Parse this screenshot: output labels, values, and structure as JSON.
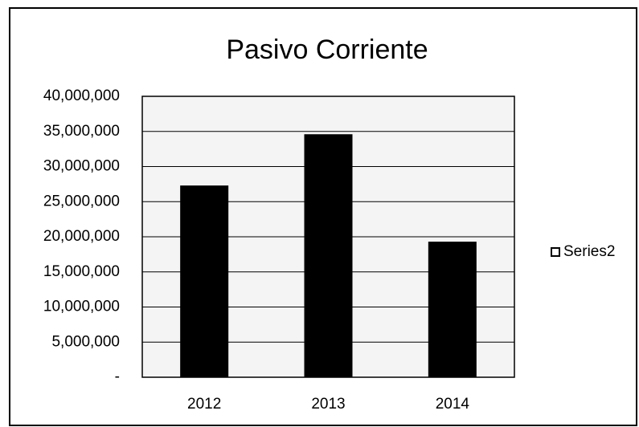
{
  "chart_data": {
    "type": "bar",
    "title": "Pasivo Corriente",
    "categories": [
      "2012",
      "2013",
      "2014"
    ],
    "series": [
      {
        "name": "Series2",
        "color": "#000000",
        "values": [
          27300000,
          34600000,
          19300000
        ]
      }
    ],
    "ylim": [
      0,
      40000000
    ],
    "yticks": [
      {
        "value": 0,
        "label": "-"
      },
      {
        "value": 5000000,
        "label": "5,000,000"
      },
      {
        "value": 10000000,
        "label": "10,000,000"
      },
      {
        "value": 15000000,
        "label": "15,000,000"
      },
      {
        "value": 20000000,
        "label": "20,000,000"
      },
      {
        "value": 25000000,
        "label": "25,000,000"
      },
      {
        "value": 30000000,
        "label": "30,000,000"
      },
      {
        "value": 35000000,
        "label": "35,000,000"
      },
      {
        "value": 40000000,
        "label": "40,000,000"
      }
    ],
    "grid": true,
    "legend": "right"
  }
}
